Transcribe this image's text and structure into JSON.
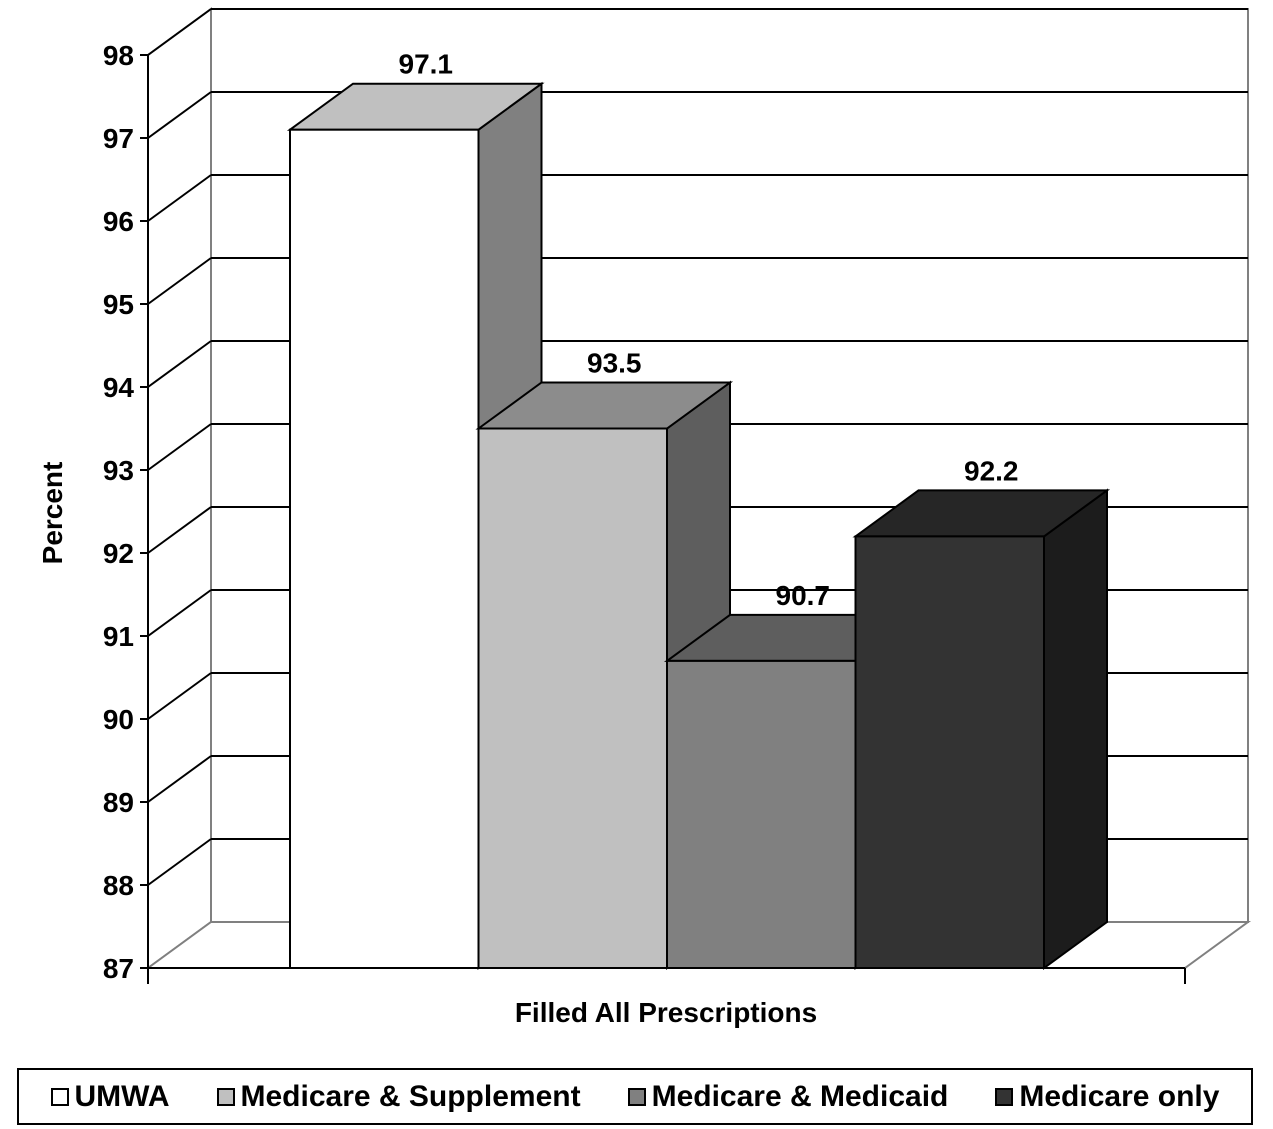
{
  "chart_data": {
    "type": "bar",
    "style": "3d-clustered",
    "categories": [
      "Filled All Prescriptions"
    ],
    "series": [
      {
        "name": "UMWA",
        "values": [
          97.1
        ],
        "color": "#ffffff",
        "data_label": "97.1"
      },
      {
        "name": "Medicare & Supplement",
        "values": [
          93.5
        ],
        "color": "#c0c0c0",
        "data_label": "93.5"
      },
      {
        "name": "Medicare & Medicaid",
        "values": [
          90.7
        ],
        "color": "#808080",
        "data_label": "90.7"
      },
      {
        "name": "Medicare only",
        "values": [
          92.2
        ],
        "color": "#333333",
        "data_label": "92.2"
      }
    ],
    "xlabel": "Filled All Prescriptions",
    "ylabel": "Percent",
    "ylim": [
      87,
      98
    ],
    "yticks": [
      "87",
      "88",
      "89",
      "90",
      "91",
      "92",
      "93",
      "94",
      "95",
      "96",
      "97",
      "98"
    ],
    "grid": true,
    "legend": "bottom"
  }
}
